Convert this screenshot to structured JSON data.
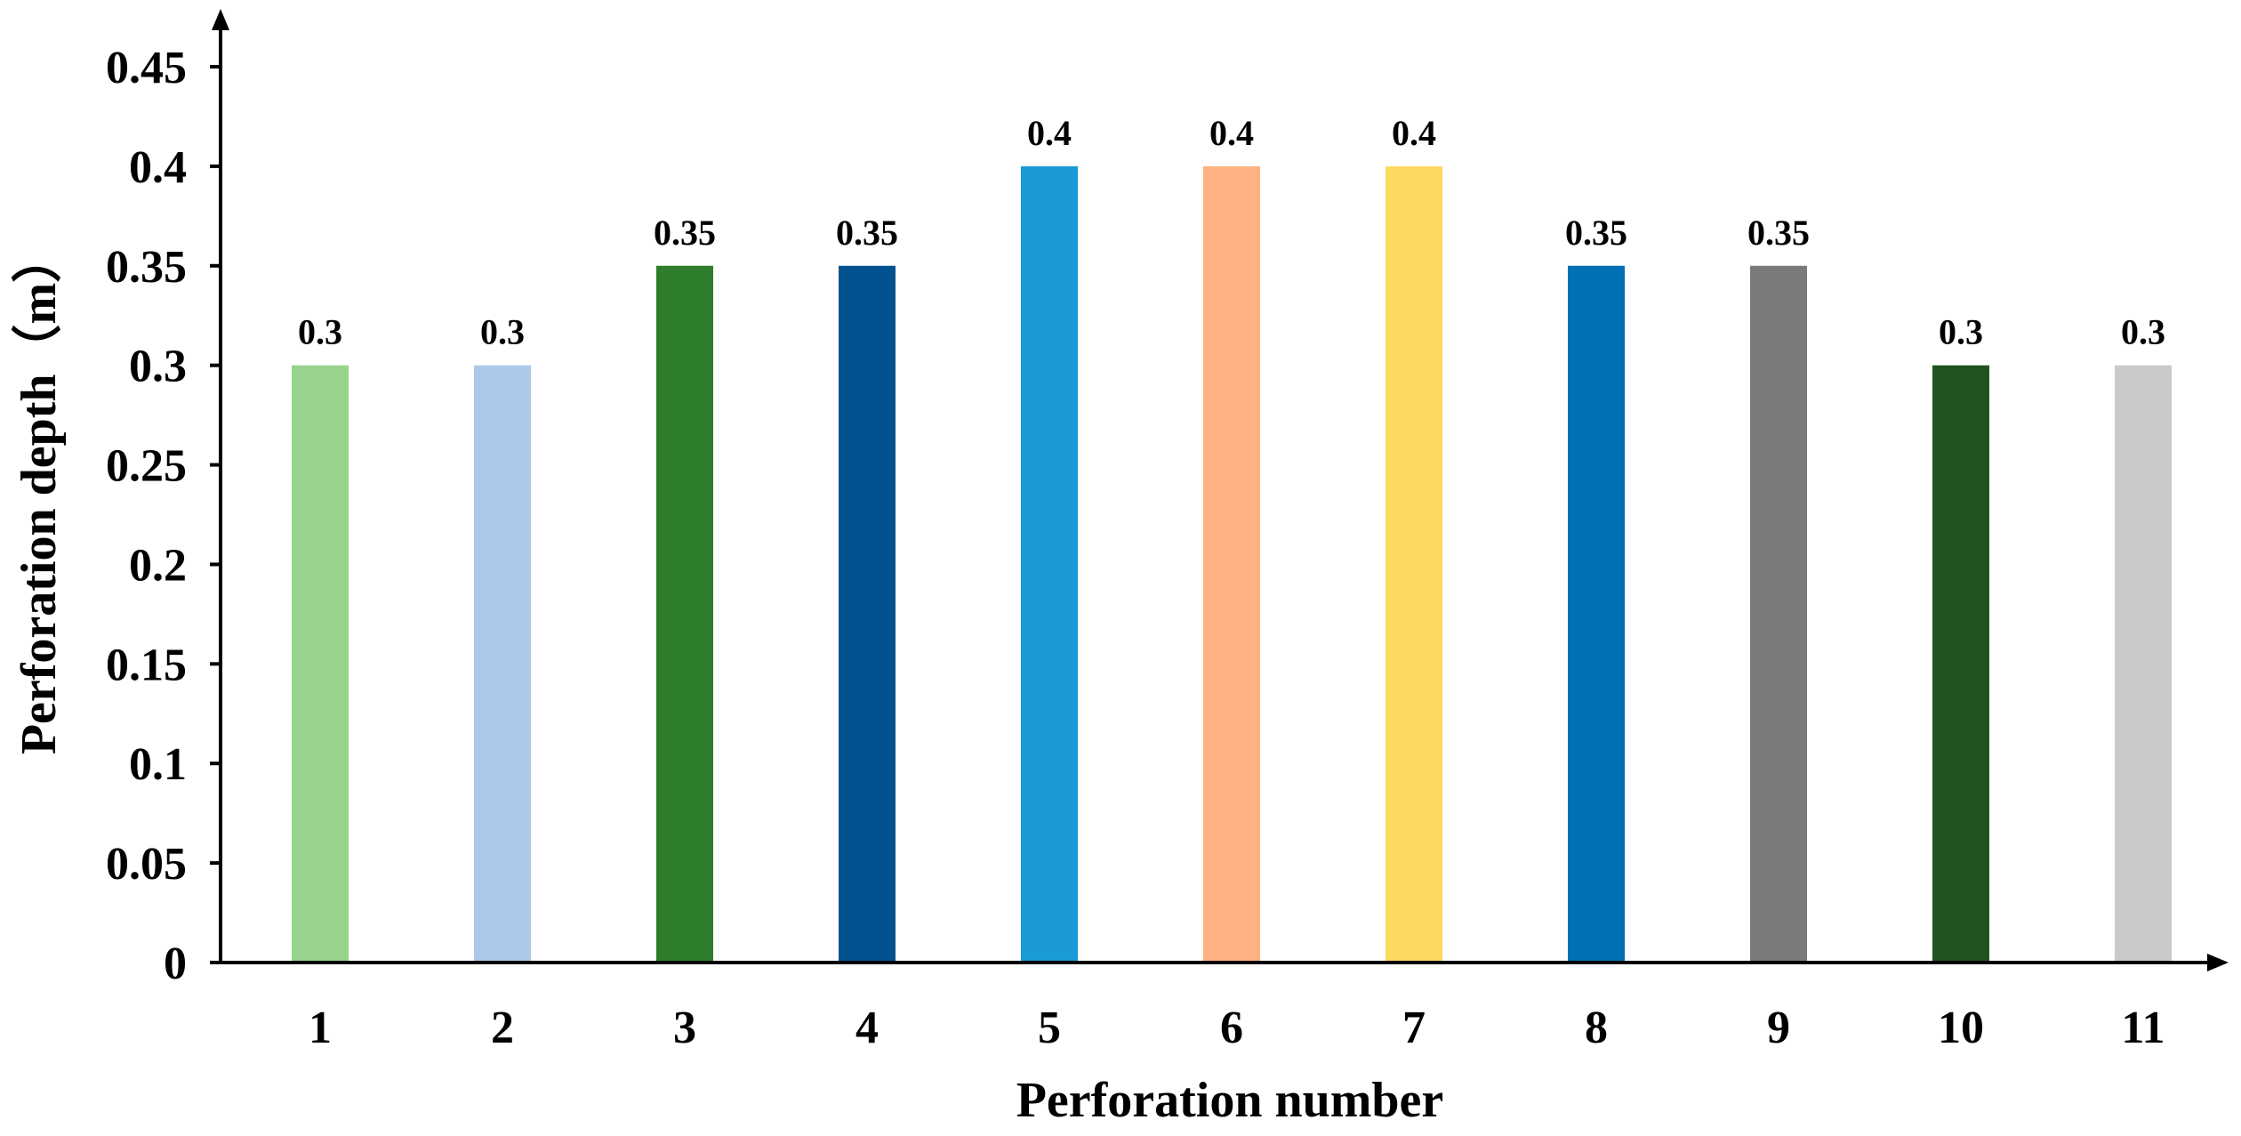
{
  "chart_data": {
    "type": "bar",
    "categories": [
      "1",
      "2",
      "3",
      "4",
      "5",
      "6",
      "7",
      "8",
      "9",
      "10",
      "11"
    ],
    "values": [
      0.3,
      0.3,
      0.35,
      0.35,
      0.4,
      0.4,
      0.4,
      0.35,
      0.35,
      0.3,
      0.3
    ],
    "data_labels": [
      "0.3",
      "0.3",
      "0.35",
      "0.35",
      "0.4",
      "0.4",
      "0.4",
      "0.35",
      "0.35",
      "0.3",
      "0.3"
    ],
    "colors": [
      "#98d38c",
      "#adc8e9",
      "#2e7d2c",
      "#02528f",
      "#1a9bd7",
      "#feb183",
      "#fdd962",
      "#0071b5",
      "#7a7a7a",
      "#20531e",
      "#c9c9c9"
    ],
    "title": "",
    "xlabel": "Perforation number",
    "ylabel": "Perforation depth（m）",
    "ylim": [
      0,
      0.45
    ],
    "yticks": [
      0,
      0.05,
      0.1,
      0.15,
      0.2,
      0.25,
      0.3,
      0.35,
      0.4,
      0.45
    ],
    "ytick_labels": [
      "0",
      "0.05",
      "0.1",
      "0.15",
      "0.2",
      "0.25",
      "0.3",
      "0.35",
      "0.4",
      "0.45"
    ],
    "grid": false,
    "legend": "none"
  }
}
